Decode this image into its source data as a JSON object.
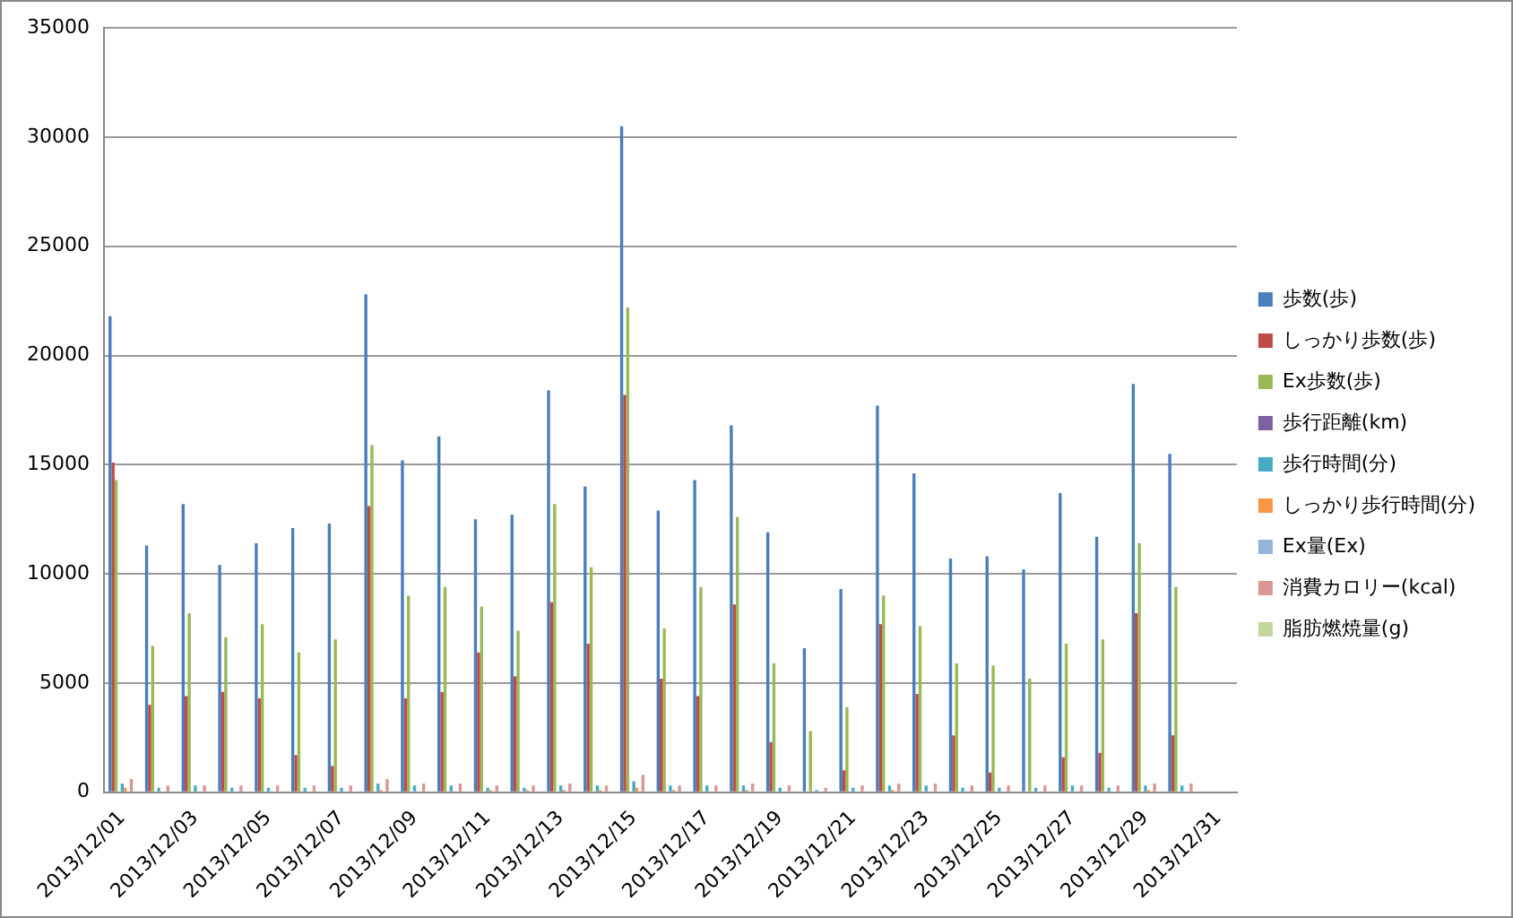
{
  "chart_data": {
    "type": "bar",
    "categories": [
      "2013/12/01",
      null,
      "2013/12/03",
      null,
      "2013/12/05",
      null,
      "2013/12/07",
      null,
      "2013/12/09",
      null,
      "2013/12/11",
      null,
      "2013/12/13",
      null,
      "2013/12/15",
      null,
      "2013/12/17",
      null,
      "2013/12/19",
      null,
      "2013/12/21",
      null,
      "2013/12/23",
      null,
      "2013/12/25",
      null,
      "2013/12/27",
      null,
      "2013/12/29",
      null,
      "2013/12/31"
    ],
    "series": [
      {
        "name": "歩数(歩)",
        "color": "#4a7ebb",
        "values": [
          21800,
          11300,
          13200,
          10400,
          11400,
          12100,
          12300,
          22800,
          15200,
          16300,
          12500,
          12700,
          18400,
          14000,
          30500,
          12900,
          14300,
          16800,
          11900,
          6600,
          9300,
          17700,
          14600,
          10700,
          10800,
          10200,
          13700,
          11700,
          18700,
          15500,
          null
        ]
      },
      {
        "name": "しっかり歩数(歩)",
        "color": "#be4b48",
        "values": [
          15100,
          4000,
          4400,
          4600,
          4300,
          1700,
          1200,
          13100,
          4300,
          4600,
          6400,
          5300,
          8700,
          6800,
          18200,
          5200,
          4400,
          8600,
          2300,
          0,
          1000,
          7700,
          4500,
          2600,
          900,
          0,
          1600,
          1800,
          8200,
          2600,
          null
        ]
      },
      {
        "name": "Ex歩数(歩)",
        "color": "#98b954",
        "values": [
          14300,
          6700,
          8200,
          7100,
          7700,
          6400,
          7000,
          15900,
          9000,
          9400,
          8500,
          7400,
          13200,
          10300,
          22200,
          7500,
          9400,
          12600,
          5900,
          2800,
          3900,
          9000,
          7600,
          5900,
          5800,
          5200,
          6800,
          7000,
          11400,
          9400,
          null
        ]
      },
      {
        "name": "歩行距離(km)",
        "color": "#7d60a0",
        "values": [
          0,
          0,
          0,
          0,
          0,
          0,
          0,
          0,
          0,
          0,
          0,
          0,
          0,
          0,
          0,
          0,
          0,
          0,
          0,
          0,
          0,
          0,
          0,
          0,
          0,
          0,
          0,
          0,
          0,
          0,
          null
        ]
      },
      {
        "name": "歩行時間(分)",
        "color": "#46aac5",
        "values": [
          400,
          200,
          300,
          200,
          200,
          200,
          200,
          400,
          300,
          300,
          200,
          200,
          300,
          300,
          500,
          300,
          300,
          300,
          200,
          100,
          200,
          300,
          300,
          200,
          200,
          200,
          300,
          200,
          300,
          300,
          null
        ]
      },
      {
        "name": "しっかり歩行時間(分)",
        "color": "#f79646",
        "values": [
          200,
          0,
          0,
          0,
          0,
          0,
          0,
          100,
          0,
          0,
          100,
          100,
          100,
          100,
          200,
          100,
          0,
          100,
          0,
          0,
          0,
          100,
          0,
          0,
          0,
          0,
          0,
          0,
          100,
          0,
          null
        ]
      },
      {
        "name": "Ex量(Ex)",
        "color": "#95b3d7",
        "values": [
          0,
          0,
          0,
          0,
          0,
          0,
          0,
          0,
          0,
          0,
          0,
          0,
          0,
          0,
          0,
          0,
          0,
          0,
          0,
          0,
          0,
          0,
          0,
          0,
          0,
          0,
          0,
          0,
          0,
          0,
          null
        ]
      },
      {
        "name": "消費カロリー(kcal)",
        "color": "#d99694",
        "values": [
          600,
          300,
          300,
          300,
          300,
          300,
          300,
          600,
          400,
          400,
          300,
          300,
          400,
          300,
          800,
          300,
          300,
          400,
          300,
          200,
          300,
          400,
          400,
          300,
          300,
          300,
          300,
          300,
          400,
          400,
          null
        ]
      },
      {
        "name": "脂肪燃焼量(g)",
        "color": "#c3d69b",
        "values": [
          0,
          0,
          0,
          0,
          0,
          0,
          0,
          0,
          0,
          0,
          0,
          0,
          0,
          0,
          0,
          0,
          0,
          0,
          0,
          0,
          0,
          0,
          0,
          0,
          0,
          0,
          0,
          0,
          0,
          0,
          null
        ]
      }
    ],
    "ylim": [
      0,
      35000
    ],
    "yticks": [
      0,
      5000,
      10000,
      15000,
      20000,
      25000,
      30000,
      35000
    ],
    "grid": "y",
    "legend": "right"
  }
}
